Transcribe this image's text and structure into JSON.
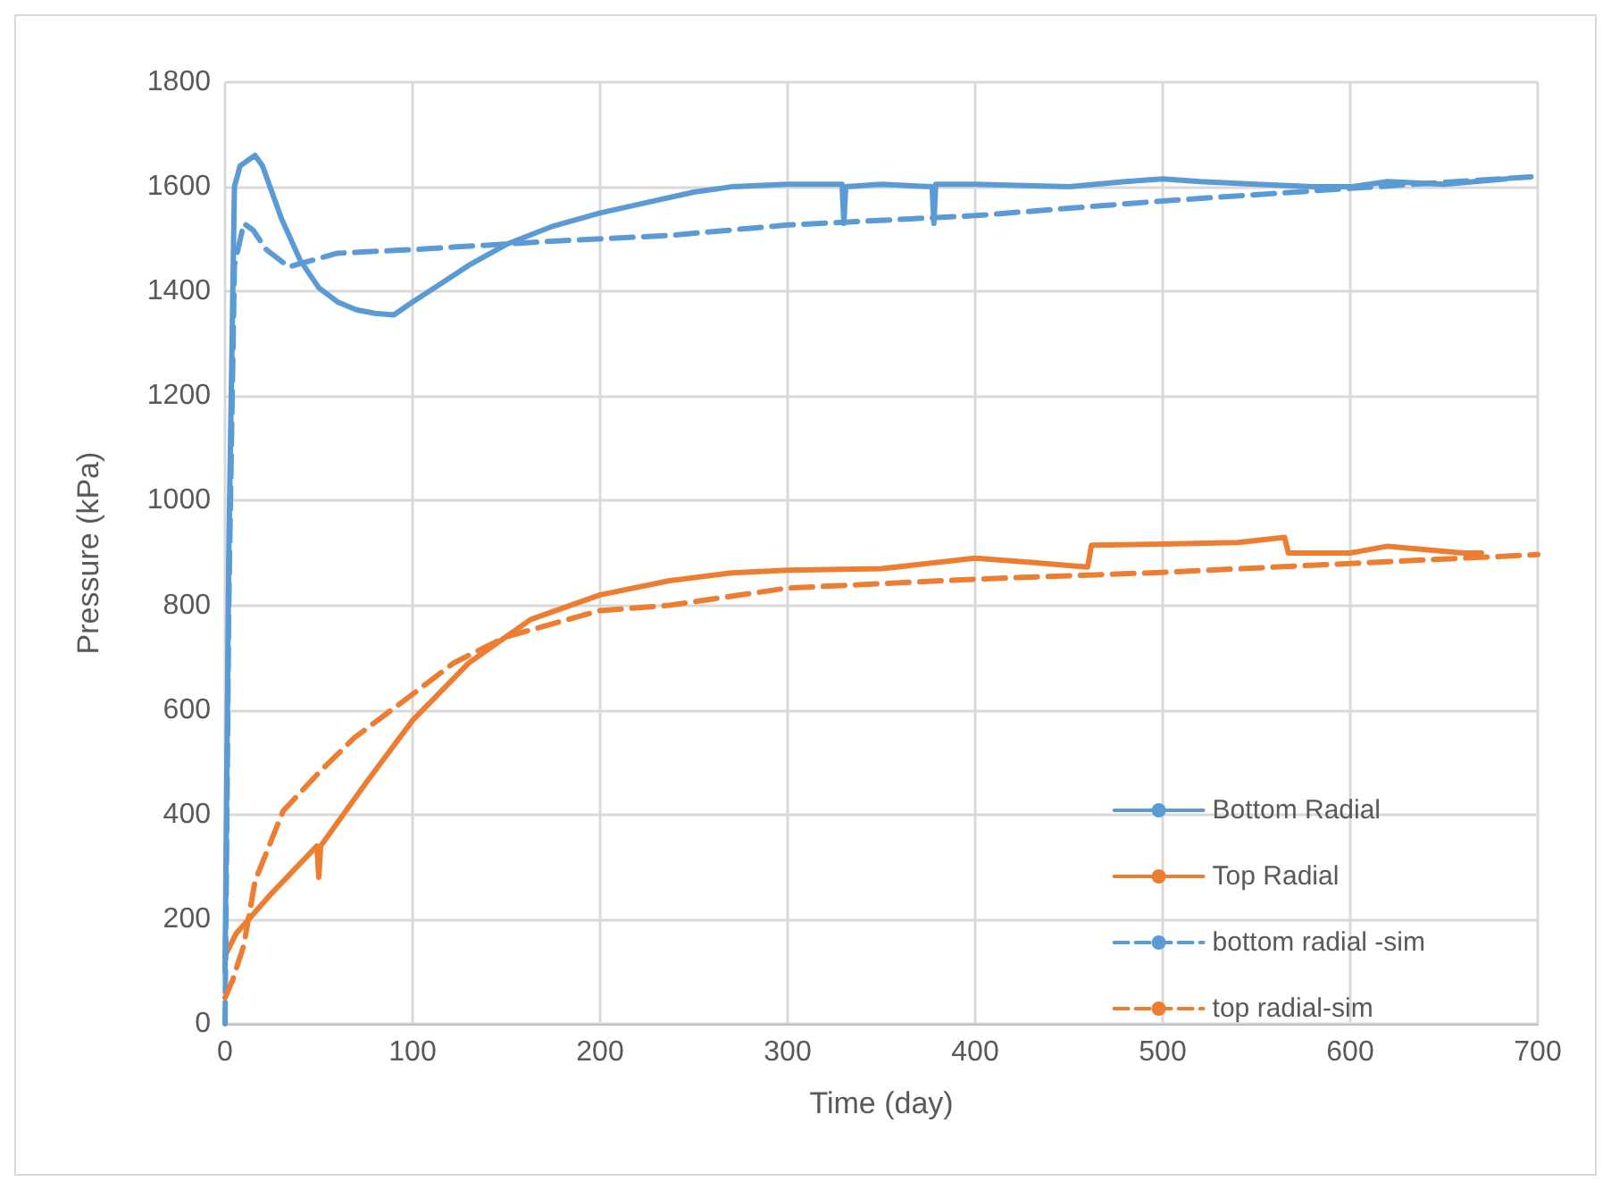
{
  "chart_data": {
    "type": "line",
    "xlabel": "Time (day)",
    "ylabel": "Pressure (kPa)",
    "xlim": [
      0,
      700
    ],
    "xticks": [
      0,
      100,
      200,
      300,
      400,
      500,
      600,
      700
    ],
    "ylim": [
      0,
      1800
    ],
    "yticks": [
      0,
      200,
      400,
      600,
      800,
      1000,
      1200,
      1400,
      1600,
      1800
    ],
    "grid": true,
    "legend": "bottom right",
    "marker": "none",
    "series": [
      {
        "name": "Bottom Radial",
        "color": "#5b9bd5",
        "line_style": "solid",
        "x": [
          0,
          2,
          5,
          8,
          12,
          16,
          20,
          30,
          40,
          50,
          60,
          70,
          80,
          90,
          100,
          116,
          130,
          150,
          175,
          200,
          225,
          250,
          270,
          300,
          329,
          330,
          331,
          350,
          377,
          378,
          379,
          400,
          450,
          480,
          500,
          520,
          550,
          580,
          600,
          620,
          650,
          683
        ],
        "values": [
          100,
          900,
          1600,
          1640,
          1650,
          1660,
          1640,
          1540,
          1460,
          1407,
          1380,
          1365,
          1358,
          1355,
          1380,
          1417,
          1450,
          1490,
          1525,
          1550,
          1570,
          1590,
          1600,
          1605,
          1605,
          1530,
          1600,
          1605,
          1600,
          1530,
          1605,
          1605,
          1600,
          1610,
          1615,
          1610,
          1605,
          1600,
          1600,
          1610,
          1605,
          1615
        ]
      },
      {
        "name": "Top Radial",
        "color": "#ed7d31",
        "line_style": "solid",
        "x": [
          0,
          6,
          25,
          49,
          50,
          51,
          75,
          100,
          130,
          163,
          200,
          237,
          270,
          300,
          350,
          400,
          430,
          460,
          462,
          500,
          540,
          565,
          567,
          600,
          620,
          660,
          670
        ],
        "values": [
          130,
          173,
          250,
          340,
          280,
          340,
          460,
          580,
          690,
          773,
          820,
          847,
          862,
          867,
          870,
          890,
          882,
          873,
          915,
          917,
          920,
          930,
          900,
          900,
          913,
          900,
          900
        ]
      },
      {
        "name": "bottom radial -sim",
        "color": "#5b9bd5",
        "line_style": "dashed",
        "x": [
          0,
          2,
          5,
          10,
          15,
          22,
          34,
          60,
          100,
          179,
          237,
          300,
          400,
          500,
          600,
          700
        ],
        "values": [
          0,
          800,
          1450,
          1530,
          1517,
          1480,
          1447,
          1473,
          1480,
          1497,
          1507,
          1527,
          1545,
          1573,
          1597,
          1620
        ]
      },
      {
        "name": "top radial-sim",
        "color": "#ed7d31",
        "line_style": "dashed",
        "x": [
          0,
          4,
          10,
          16,
          31,
          50,
          69,
          100,
          122,
          150,
          200,
          237,
          300,
          400,
          500,
          600,
          700
        ],
        "values": [
          50,
          83,
          150,
          273,
          407,
          480,
          547,
          630,
          690,
          740,
          790,
          800,
          833,
          850,
          863,
          880,
          897
        ]
      }
    ]
  }
}
